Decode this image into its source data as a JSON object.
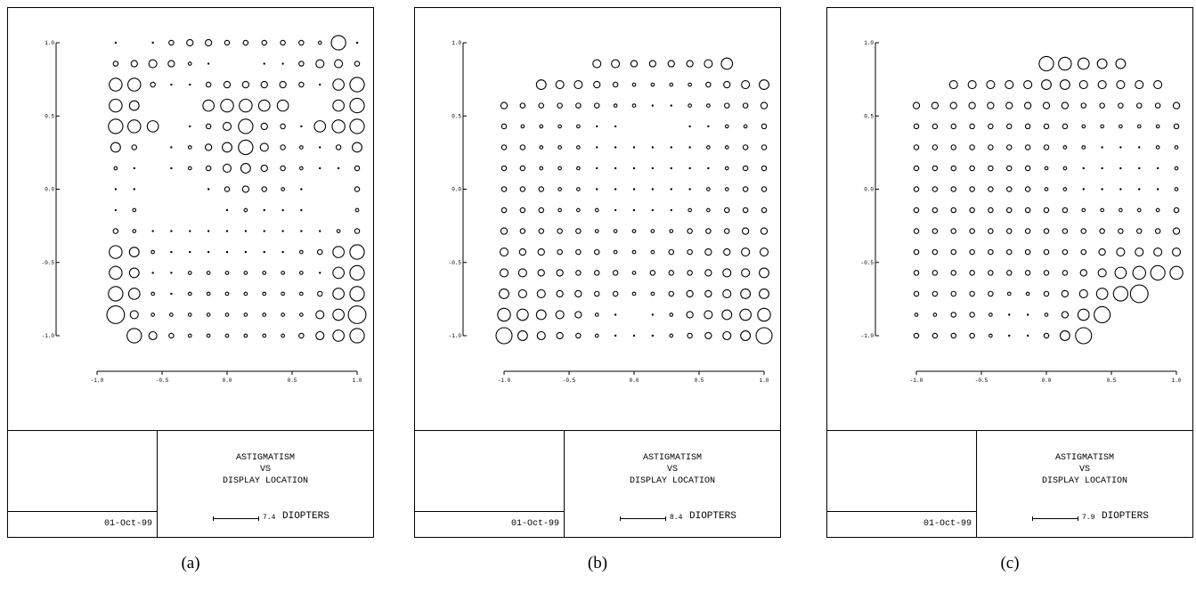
{
  "chart_data": [
    {
      "type": "scatter",
      "title": [
        "ASTIGMATISM",
        "VS",
        "DISPLAY LOCATION"
      ],
      "date": "01-Oct-99",
      "scale_bar": {
        "value": "7.4",
        "unit": "DIOPTERS"
      },
      "caption": "(a)",
      "x_ticks": [
        "-1.0",
        "-0.5",
        "0.0",
        "0.5",
        "1.0"
      ],
      "y_ticks": [
        "1.0",
        "0.5",
        "0.0",
        "-0.5",
        "-1.0"
      ],
      "xlim": [
        -1.0,
        1.0
      ],
      "ylim": [
        -1.0,
        1.0
      ],
      "grid_x": [
        -1.0,
        -0.857,
        -0.714,
        -0.571,
        -0.429,
        -0.286,
        -0.143,
        0.0,
        0.143,
        0.286,
        0.429,
        0.571,
        0.714,
        0.857,
        1.0
      ],
      "grid_y": [
        1.0,
        0.857,
        0.714,
        0.571,
        0.429,
        0.286,
        0.143,
        0.0,
        -0.143,
        -0.286,
        -0.429,
        -0.571,
        -0.714,
        -0.857,
        -1.0
      ],
      "magnitudes": [
        [
          0,
          1,
          0,
          1,
          3,
          4,
          4,
          3,
          3,
          3,
          3,
          3,
          2,
          9,
          1
        ],
        [
          0,
          3,
          4,
          5,
          4,
          2,
          1,
          0,
          0,
          1,
          1,
          3,
          5,
          5,
          3
        ],
        [
          0,
          8,
          8,
          3,
          1,
          1,
          3,
          4,
          4,
          4,
          4,
          3,
          1,
          7,
          9
        ],
        [
          0,
          8,
          6,
          0,
          0,
          0,
          7,
          8,
          8,
          7,
          7,
          0,
          0,
          7,
          9
        ],
        [
          0,
          9,
          8,
          7,
          0,
          1,
          3,
          5,
          9,
          4,
          3,
          1,
          7,
          8,
          9
        ],
        [
          0,
          6,
          3,
          0,
          1,
          2,
          4,
          6,
          9,
          5,
          3,
          2,
          1,
          3,
          6
        ],
        [
          0,
          2,
          1,
          0,
          1,
          2,
          3,
          5,
          6,
          4,
          3,
          2,
          1,
          1,
          3
        ],
        [
          0,
          1,
          1,
          0,
          0,
          0,
          1,
          3,
          4,
          3,
          2,
          1,
          0,
          0,
          3
        ],
        [
          0,
          1,
          2,
          0,
          0,
          0,
          0,
          1,
          2,
          1,
          1,
          1,
          0,
          0,
          2
        ],
        [
          0,
          3,
          2,
          1,
          1,
          1,
          1,
          1,
          1,
          1,
          1,
          1,
          1,
          2,
          3
        ],
        [
          0,
          8,
          6,
          2,
          1,
          1,
          1,
          1,
          1,
          1,
          1,
          2,
          3,
          7,
          9
        ],
        [
          0,
          8,
          6,
          1,
          1,
          2,
          2,
          2,
          2,
          2,
          2,
          2,
          1,
          7,
          9
        ],
        [
          0,
          9,
          7,
          2,
          1,
          2,
          2,
          2,
          2,
          2,
          2,
          2,
          3,
          7,
          9
        ],
        [
          0,
          11,
          5,
          2,
          2,
          2,
          2,
          2,
          2,
          2,
          2,
          2,
          5,
          7,
          11
        ],
        [
          0,
          0,
          9,
          5,
          3,
          2,
          2,
          2,
          2,
          2,
          2,
          3,
          5,
          7,
          9
        ]
      ]
    },
    {
      "type": "scatter",
      "title": [
        "ASTIGMATISM",
        "VS",
        "DISPLAY LOCATION"
      ],
      "date": "01-Oct-99",
      "scale_bar": {
        "value": "8.4",
        "unit": "DIOPTERS"
      },
      "caption": "(b)",
      "x_ticks": [
        "-1.0",
        "-0.5",
        "0.0",
        "0.5",
        "1.0"
      ],
      "y_ticks": [
        "1.0",
        "0.5",
        "0.0",
        "-0.5",
        "-1.0"
      ],
      "xlim": [
        -1.0,
        1.0
      ],
      "ylim": [
        -1.0,
        1.0
      ],
      "grid_x": [
        -1.0,
        -0.857,
        -0.714,
        -0.571,
        -0.429,
        -0.286,
        -0.143,
        0.0,
        0.143,
        0.286,
        0.429,
        0.571,
        0.714,
        0.857,
        1.0
      ],
      "grid_y": [
        1.0,
        0.857,
        0.714,
        0.571,
        0.429,
        0.286,
        0.143,
        0.0,
        -0.143,
        -0.286,
        -0.429,
        -0.571,
        -0.714,
        -0.857,
        -1.0
      ],
      "magnitudes": [
        [
          0,
          0,
          0,
          0,
          0,
          0,
          0,
          0,
          0,
          0,
          0,
          0,
          0,
          0,
          0
        ],
        [
          0,
          0,
          0,
          0,
          0,
          5,
          5,
          4,
          4,
          4,
          4,
          5,
          7,
          0,
          0
        ],
        [
          0,
          0,
          6,
          5,
          5,
          4,
          3,
          2,
          2,
          2,
          2,
          3,
          4,
          5,
          6
        ],
        [
          4,
          3,
          3,
          3,
          3,
          3,
          2,
          2,
          1,
          1,
          2,
          2,
          3,
          3,
          4
        ],
        [
          3,
          2,
          2,
          2,
          2,
          1,
          1,
          0,
          0,
          0,
          1,
          1,
          2,
          2,
          3
        ],
        [
          3,
          3,
          2,
          2,
          2,
          1,
          1,
          1,
          1,
          1,
          1,
          2,
          2,
          3,
          3
        ],
        [
          3,
          3,
          2,
          2,
          2,
          1,
          1,
          1,
          1,
          1,
          1,
          1,
          2,
          3,
          3
        ],
        [
          3,
          3,
          3,
          2,
          2,
          1,
          1,
          1,
          1,
          1,
          1,
          2,
          2,
          3,
          3
        ],
        [
          3,
          3,
          3,
          2,
          2,
          2,
          1,
          1,
          1,
          1,
          2,
          2,
          3,
          3,
          3
        ],
        [
          4,
          3,
          3,
          3,
          3,
          2,
          2,
          2,
          2,
          2,
          3,
          3,
          3,
          4,
          4
        ],
        [
          5,
          4,
          4,
          3,
          3,
          3,
          2,
          2,
          2,
          3,
          3,
          4,
          4,
          5,
          5
        ],
        [
          5,
          5,
          4,
          4,
          3,
          3,
          3,
          2,
          3,
          3,
          3,
          4,
          5,
          5,
          6
        ],
        [
          6,
          5,
          5,
          4,
          4,
          3,
          3,
          2,
          2,
          3,
          4,
          4,
          5,
          6,
          6
        ],
        [
          8,
          7,
          6,
          5,
          4,
          2,
          1,
          0,
          1,
          2,
          4,
          5,
          6,
          7,
          8
        ],
        [
          10,
          6,
          5,
          4,
          3,
          2,
          1,
          1,
          1,
          2,
          3,
          4,
          5,
          6,
          10
        ]
      ]
    },
    {
      "type": "scatter",
      "title": [
        "ASTIGMATISM",
        "VS",
        "DISPLAY LOCATION"
      ],
      "date": "01-Oct-99",
      "scale_bar": {
        "value": "7.9",
        "unit": "DIOPTERS"
      },
      "caption": "(c)",
      "x_ticks": [
        "-1.0",
        "-0.5",
        "0.0",
        "0.5",
        "1.0"
      ],
      "y_ticks": [
        "1.0",
        "0.5",
        "0.0",
        "-0.5",
        "-1.0"
      ],
      "xlim": [
        -1.0,
        1.0
      ],
      "ylim": [
        -1.0,
        1.0
      ],
      "grid_x": [
        -1.0,
        -0.857,
        -0.714,
        -0.571,
        -0.429,
        -0.286,
        -0.143,
        0.0,
        0.143,
        0.286,
        0.429,
        0.571,
        0.714,
        0.857,
        1.0
      ],
      "grid_y": [
        1.0,
        0.857,
        0.714,
        0.571,
        0.429,
        0.286,
        0.143,
        0.0,
        -0.143,
        -0.286,
        -0.429,
        -0.571,
        -0.714,
        -0.857,
        -1.0
      ],
      "magnitudes": [
        [
          0,
          0,
          0,
          0,
          0,
          0,
          0,
          0,
          0,
          0,
          0,
          0,
          0,
          0,
          0
        ],
        [
          0,
          0,
          0,
          0,
          0,
          0,
          0,
          9,
          8,
          7,
          6,
          6,
          0,
          0,
          0
        ],
        [
          0,
          0,
          5,
          5,
          5,
          5,
          5,
          6,
          6,
          5,
          5,
          5,
          5,
          5,
          0
        ],
        [
          4,
          4,
          4,
          4,
          4,
          4,
          4,
          4,
          4,
          3,
          3,
          3,
          3,
          3,
          4
        ],
        [
          3,
          3,
          3,
          3,
          3,
          3,
          3,
          3,
          3,
          2,
          2,
          2,
          2,
          2,
          3
        ],
        [
          3,
          3,
          3,
          3,
          3,
          3,
          3,
          3,
          2,
          2,
          1,
          1,
          1,
          2,
          2
        ],
        [
          3,
          3,
          3,
          3,
          3,
          3,
          3,
          2,
          2,
          1,
          1,
          1,
          1,
          1,
          2
        ],
        [
          3,
          3,
          3,
          3,
          3,
          3,
          3,
          2,
          2,
          1,
          1,
          1,
          1,
          1,
          2
        ],
        [
          3,
          3,
          3,
          3,
          3,
          3,
          3,
          3,
          3,
          2,
          2,
          2,
          2,
          2,
          3
        ],
        [
          3,
          3,
          3,
          3,
          3,
          3,
          3,
          3,
          3,
          3,
          3,
          3,
          3,
          3,
          4
        ],
        [
          3,
          3,
          3,
          3,
          3,
          3,
          3,
          3,
          3,
          3,
          4,
          5,
          5,
          5,
          5
        ],
        [
          3,
          3,
          3,
          3,
          3,
          3,
          3,
          3,
          3,
          4,
          5,
          7,
          8,
          9,
          8
        ],
        [
          3,
          3,
          3,
          3,
          3,
          2,
          2,
          3,
          4,
          5,
          7,
          9,
          11,
          0,
          0
        ],
        [
          2,
          2,
          3,
          3,
          2,
          1,
          1,
          2,
          4,
          7,
          10,
          0,
          0,
          0,
          0
        ],
        [
          3,
          3,
          3,
          3,
          2,
          1,
          1,
          3,
          6,
          10,
          0,
          0,
          0,
          0,
          0
        ]
      ]
    }
  ]
}
